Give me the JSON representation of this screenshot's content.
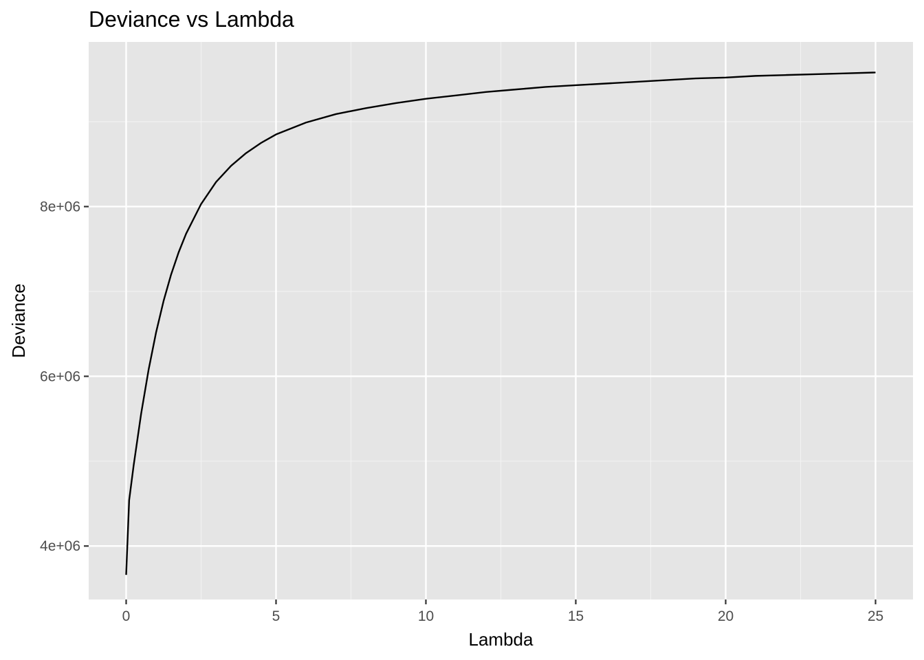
{
  "chart_data": {
    "type": "line",
    "title": "Deviance vs Lambda",
    "xlabel": "Lambda",
    "ylabel": "Deviance",
    "xlim": [
      -1.25,
      26.25
    ],
    "ylim": [
      3370000,
      9940000
    ],
    "x_ticks": [
      0,
      5,
      10,
      15,
      20,
      25
    ],
    "x_tick_labels": [
      "0",
      "5",
      "10",
      "15",
      "20",
      "25"
    ],
    "y_ticks": [
      4000000,
      6000000,
      8000000
    ],
    "y_tick_labels": [
      "4e+06",
      "6e+06",
      "8e+06"
    ],
    "grid": true,
    "legend": "none",
    "colors": {
      "panel_background": "#e5e5e5",
      "grid_major": "#ffffff",
      "grid_minor": "#f2f2f2",
      "line": "#000000",
      "tick_text": "#4d4d4d"
    },
    "series": [
      {
        "x": [
          0,
          0.1,
          0.25,
          0.5,
          0.75,
          1,
          1.25,
          1.5,
          1.75,
          2,
          2.5,
          3,
          3.5,
          4,
          4.5,
          5,
          6,
          7,
          8,
          9,
          10,
          11,
          12,
          13,
          14,
          15,
          16,
          17,
          18,
          19,
          20,
          21,
          22,
          23,
          24,
          25
        ],
        "values": [
          3660000,
          4540000,
          4950000,
          5560000,
          6080000,
          6520000,
          6890000,
          7200000,
          7460000,
          7680000,
          8030000,
          8290000,
          8480000,
          8630000,
          8750000,
          8850000,
          8990000,
          9090000,
          9160000,
          9220000,
          9270000,
          9310000,
          9350000,
          9380000,
          9410000,
          9430000,
          9450000,
          9470000,
          9490000,
          9510000,
          9520000,
          9540000,
          9550000,
          9560000,
          9570000,
          9580000
        ]
      }
    ]
  }
}
